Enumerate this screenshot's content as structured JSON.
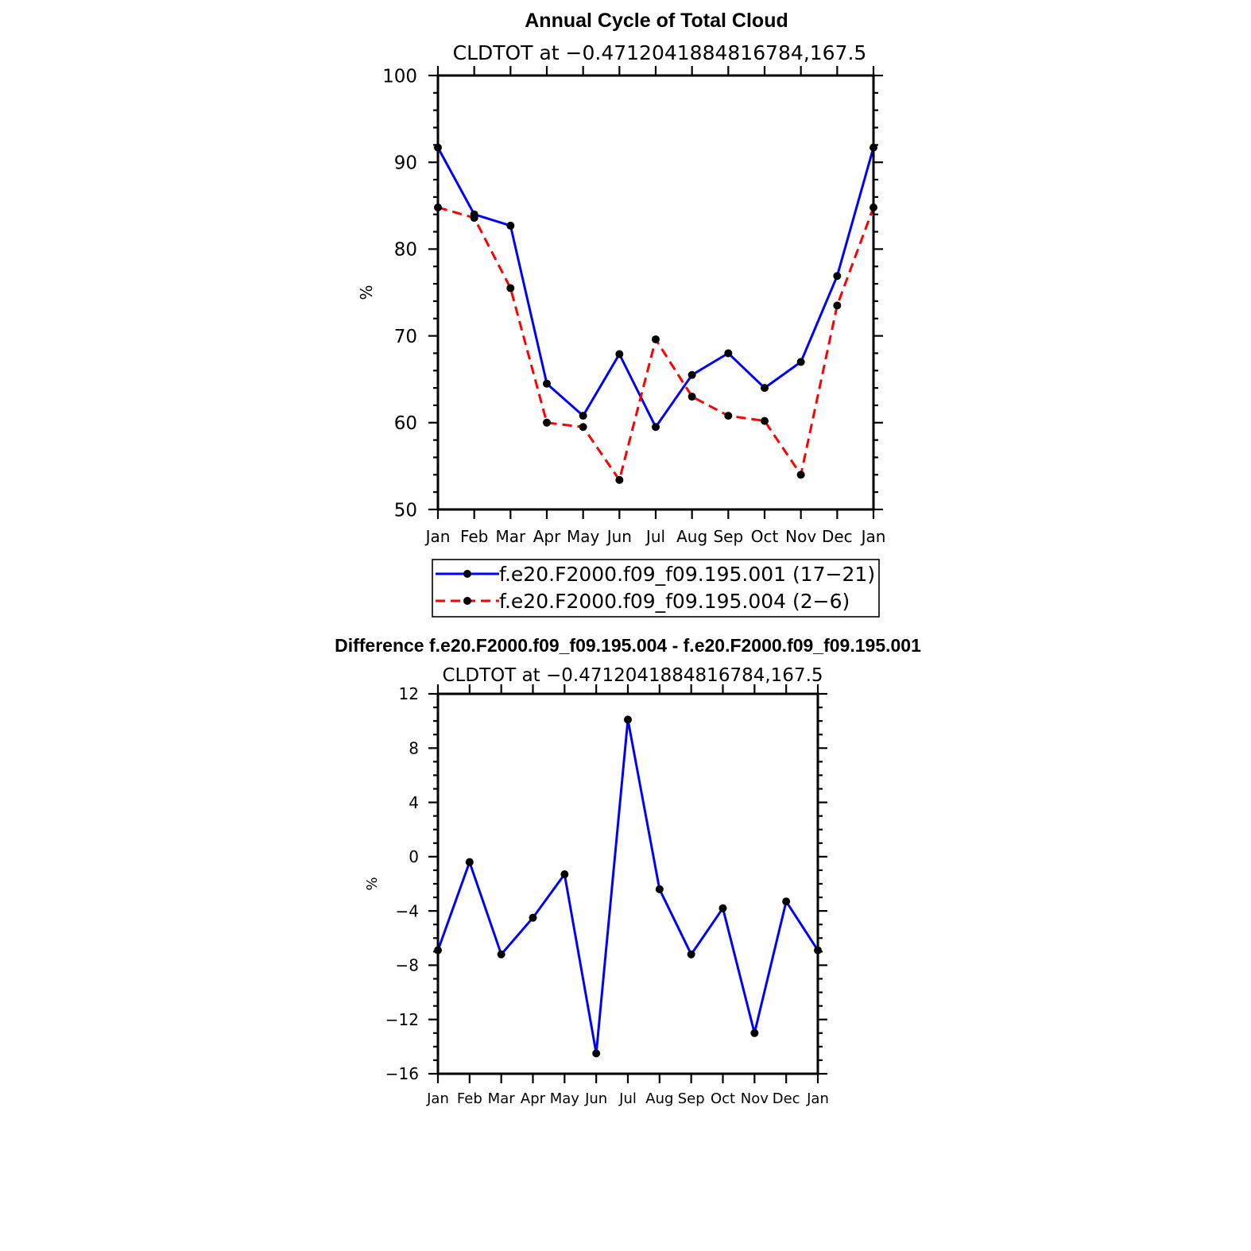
{
  "chart_data": [
    {
      "type": "line",
      "title": "Annual Cycle of Total Cloud",
      "subtitle": "CLDTOT at −0.4712041884816784,167.5",
      "ylabel": "%",
      "xlabel": "",
      "ylim": [
        50,
        100
      ],
      "yticks": [
        50,
        60,
        70,
        80,
        90,
        100
      ],
      "yticklabels": [
        "50",
        "60",
        "70",
        "80",
        "90",
        "100"
      ],
      "categories": [
        "Jan",
        "Feb",
        "Mar",
        "Apr",
        "May",
        "Jun",
        "Jul",
        "Aug",
        "Sep",
        "Oct",
        "Nov",
        "Dec",
        "Jan"
      ],
      "series": [
        {
          "name": "f.e20.F2000.f09_f09.195.001 (17−21)",
          "color": "#0000ff",
          "style": "solid",
          "values": [
            91.7,
            84.0,
            82.7,
            64.5,
            60.8,
            67.9,
            59.5,
            65.5,
            68.0,
            64.0,
            67.0,
            76.9,
            91.7
          ]
        },
        {
          "name": "f.e20.F2000.f09_f09.195.004 (2−6)",
          "color": "#ff0000",
          "style": "dashed",
          "values": [
            84.8,
            83.6,
            75.5,
            60.0,
            59.5,
            53.4,
            69.6,
            63.0,
            60.8,
            60.2,
            54.0,
            73.5,
            84.8
          ]
        }
      ],
      "legend": "bottom"
    },
    {
      "type": "line",
      "title": "Difference f.e20.F2000.f09_f09.195.004 - f.e20.F2000.f09_f09.195.001",
      "subtitle": "CLDTOT at −0.4712041884816784,167.5",
      "ylabel": "%",
      "xlabel": "",
      "ylim": [
        -16,
        12
      ],
      "yticks": [
        -16,
        -12,
        -8,
        -4,
        0,
        4,
        8,
        12
      ],
      "yticklabels": [
        "−16",
        "−12",
        "−8",
        "−4",
        "0",
        "4",
        "8",
        "12"
      ],
      "categories": [
        "Jan",
        "Feb",
        "Mar",
        "Apr",
        "May",
        "Jun",
        "Jul",
        "Aug",
        "Sep",
        "Oct",
        "Nov",
        "Dec",
        "Jan"
      ],
      "series": [
        {
          "name": "Difference",
          "color": "#0000ff",
          "style": "solid",
          "values": [
            -6.9,
            -0.4,
            -7.2,
            -4.5,
            -1.3,
            -14.5,
            10.1,
            -2.4,
            -7.2,
            -3.8,
            -13.0,
            -3.3,
            -6.9
          ]
        }
      ]
    }
  ]
}
